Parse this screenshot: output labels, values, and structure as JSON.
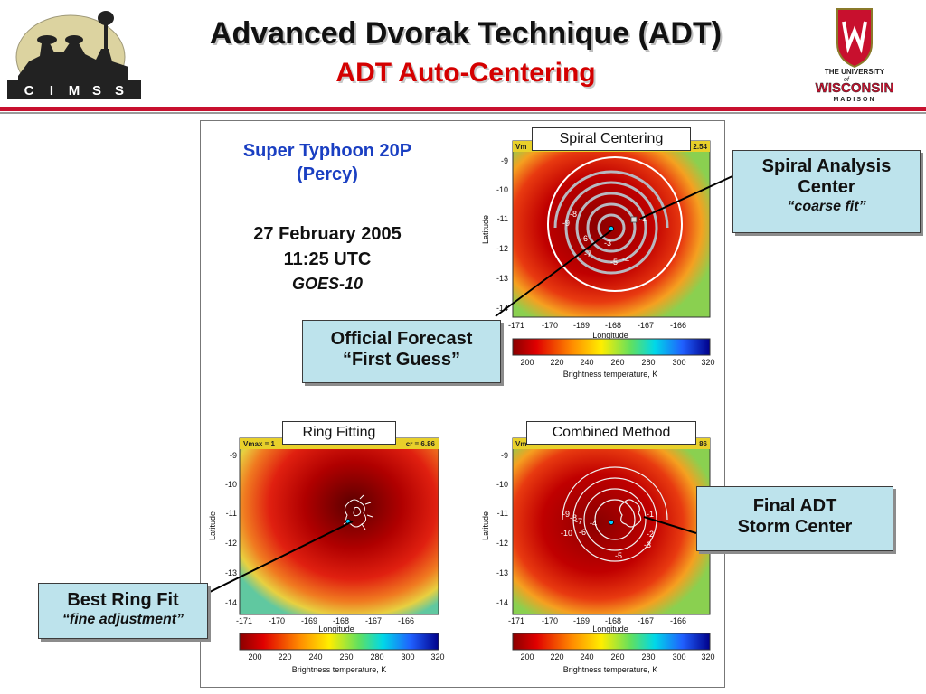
{
  "slide": {
    "title": "Advanced Dvorak Technique (ADT)",
    "subtitle": "ADT Auto-Centering",
    "cimss_letters": [
      "C",
      "I",
      "M",
      "S",
      "S"
    ],
    "uw_logo": {
      "line1": "THE UNIVERSITY",
      "of": "of",
      "line2": "WISCONSIN",
      "line3": "MADISON"
    }
  },
  "storm_info": {
    "name_line1": "Super Typhoon 20P",
    "name_line2": "(Percy)",
    "date": "27 February 2005",
    "time": "11:25 UTC",
    "satellite": "GOES-10"
  },
  "panel_labels": {
    "spiral": "Spiral Centering",
    "ring": "Ring Fitting",
    "combined": "Combined Method"
  },
  "callouts": {
    "spiral_center": {
      "line1": "Spiral Analysis",
      "line2": "Center",
      "note": "“coarse fit”"
    },
    "first_guess": {
      "line1": "Official Forecast",
      "line2": "“First Guess”"
    },
    "final_center": {
      "line1": "Final ADT",
      "line2": "Storm Center"
    },
    "ring_fit": {
      "line1": "Best Ring Fit",
      "note": "“fine adjustment”"
    }
  },
  "axes": {
    "x_label": "Longitude",
    "y_label": "Latitude",
    "x_ticks": [
      "-171",
      "-170",
      "-169",
      "-168",
      "-167",
      "-166"
    ],
    "y_ticks": [
      "-9",
      "-10",
      "-11",
      "-12",
      "-13",
      "-14"
    ],
    "colorbar_ticks": [
      "200",
      "220",
      "240",
      "260",
      "280",
      "300",
      "320"
    ],
    "colorbar_label": "Brightness temperature, K"
  },
  "map_headers": {
    "spiral_left": "Vm",
    "spiral_right": "2.54",
    "ring_left": "Vmax = 1",
    "ring_right": "cr = 6.86",
    "combined_left": "Vm",
    "combined_right": "86"
  },
  "contour_labels": {
    "spiral": [
      "-8",
      "-9",
      "-6",
      "-7",
      "-3",
      "-5",
      "-4",
      "-1"
    ],
    "combined": [
      "-9",
      "-8",
      "-7",
      "-10",
      "-6",
      "-4",
      "-1",
      "-2",
      "-3",
      "-5"
    ]
  },
  "colors": {
    "accent_red": "#c8102e",
    "callout_bg": "#bde3ec",
    "info_blue": "#1a3fc2"
  }
}
